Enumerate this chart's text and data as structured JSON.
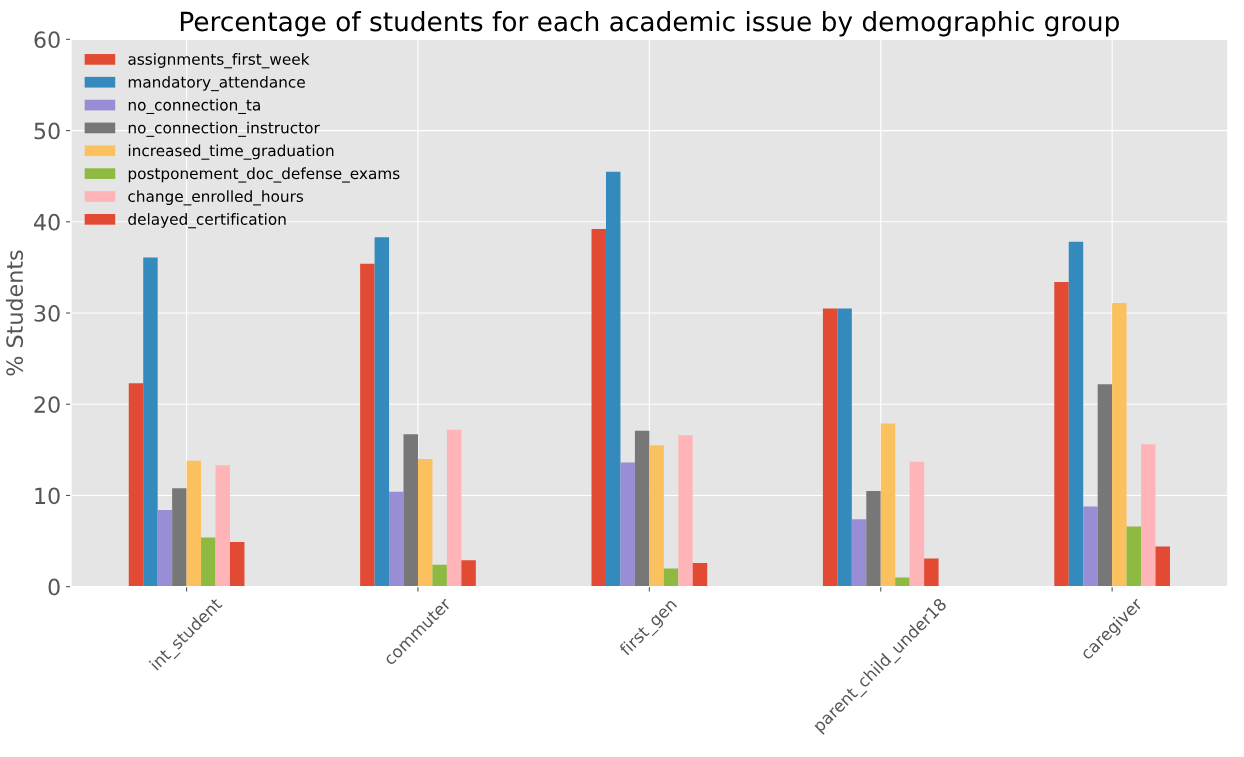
{
  "chart_data": {
    "type": "bar",
    "title": "Percentage of students for each academic issue by demographic group",
    "ylabel": "% Students",
    "categories": [
      "int_student",
      "commuter",
      "first_gen",
      "parent_child_under18",
      "caregiver"
    ],
    "series": [
      {
        "name": "assignments_first_week",
        "color": "#e24a33",
        "values": [
          22.3,
          35.4,
          39.2,
          30.5,
          33.4
        ]
      },
      {
        "name": "mandatory_attendance",
        "color": "#348abd",
        "values": [
          36.1,
          38.3,
          45.5,
          30.5,
          37.8
        ]
      },
      {
        "name": "no_connection_ta",
        "color": "#988ed5",
        "values": [
          8.4,
          10.4,
          13.6,
          7.4,
          8.8
        ]
      },
      {
        "name": "no_connection_instructor",
        "color": "#777777",
        "values": [
          10.8,
          16.7,
          17.1,
          10.5,
          22.2
        ]
      },
      {
        "name": "increased_time_graduation",
        "color": "#fbc15e",
        "values": [
          13.8,
          14.0,
          15.5,
          17.9,
          31.1
        ]
      },
      {
        "name": "postponement_doc_defense_exams",
        "color": "#8eba42",
        "values": [
          5.4,
          2.4,
          2.0,
          1.0,
          6.6
        ]
      },
      {
        "name": "change_enrolled_hours",
        "color": "#ffb5b8",
        "values": [
          13.3,
          17.2,
          16.6,
          13.7,
          15.6
        ]
      },
      {
        "name": "delayed_certification",
        "color": "#e24a33",
        "values": [
          4.9,
          2.9,
          2.6,
          3.1,
          4.4
        ]
      }
    ],
    "ylim": [
      0,
      60
    ],
    "yticks": [
      0,
      10,
      20,
      30,
      40,
      50,
      60
    ],
    "grid": true,
    "legend": "top left"
  }
}
